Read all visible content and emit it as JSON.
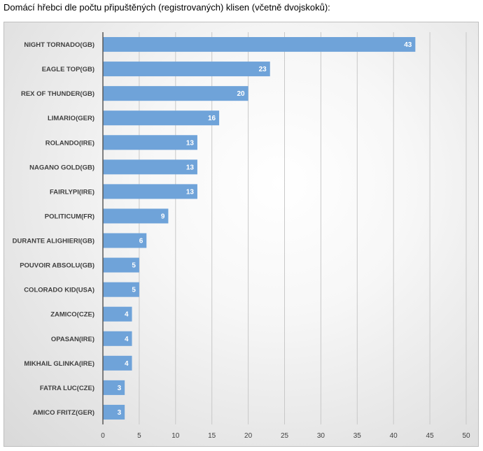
{
  "page": {
    "title": "Domácí hřebci dle počtu připuštěných (registrovaných) klisen (včetně dvojskoků):"
  },
  "chart_data": {
    "type": "bar",
    "orientation": "horizontal",
    "categories": [
      "NIGHT TORNADO(GB)",
      "EAGLE TOP(GB)",
      "REX OF THUNDER(GB)",
      "LIMARIO(GER)",
      "ROLANDO(IRE)",
      "NAGANO GOLD(GB)",
      "FAIRLYPI(IRE)",
      "POLITICUM(FR)",
      "DURANTE ALIGHIERI(GB)",
      "POUVOIR ABSOLU(GB)",
      "COLORADO KID(USA)",
      "ZAMICO(CZE)",
      "OPASAN(IRE)",
      "MIKHAIL GLINKA(IRE)",
      "FATRA LUC(CZE)",
      "AMICO FRITZ(GER)"
    ],
    "values": [
      43,
      23,
      20,
      16,
      13,
      13,
      13,
      9,
      6,
      5,
      5,
      4,
      4,
      4,
      3,
      3
    ],
    "xlim": [
      0,
      50
    ],
    "xticks": [
      0,
      5,
      10,
      15,
      20,
      25,
      30,
      35,
      40,
      45,
      50
    ],
    "grid": true,
    "data_labels": true,
    "colors": {
      "bar": "#6fa3d9",
      "grid": "#c8c8c8",
      "axis": "#595959"
    }
  }
}
